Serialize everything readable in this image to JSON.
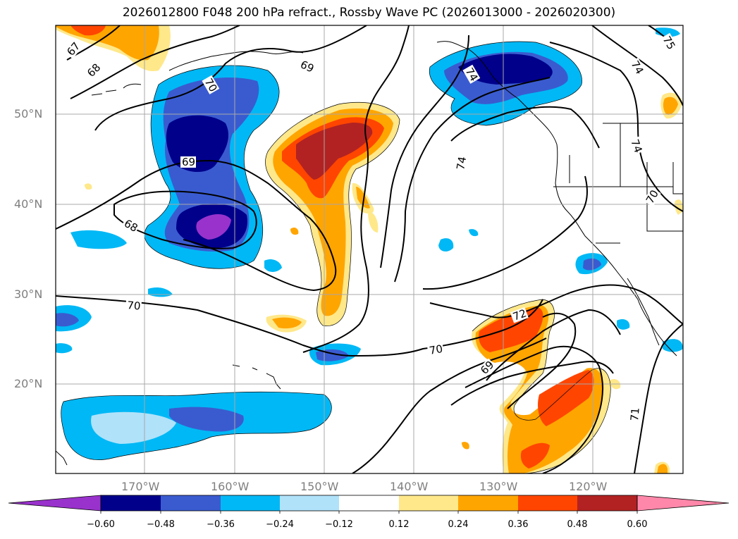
{
  "title": "2026012800 F048 200 hPa refract., Rossby Wave PC (2026013000 - 2026020300)",
  "lat_labels": [
    "50°N",
    "40°N",
    "30°N",
    "20°N"
  ],
  "lon_labels": [
    "170°W",
    "160°W",
    "150°W",
    "140°W",
    "130°W",
    "120°W"
  ],
  "contour_labels": [
    "67",
    "68",
    "70",
    "69",
    "69",
    "68",
    "70",
    "74",
    "74",
    "74",
    "70",
    "72",
    "70",
    "69",
    "71",
    "74",
    "75"
  ],
  "colorbar": {
    "ticks": [
      "−0.60",
      "−0.48",
      "−0.36",
      "−0.24",
      "−0.12",
      "0.12",
      "0.24",
      "0.36",
      "0.48",
      "0.60"
    ],
    "colors": [
      "#9932cc",
      "#00008b",
      "#3a5bd0",
      "#00b8f5",
      "#b0e2fa",
      "#ffffff",
      "#ffe88a",
      "#ffa500",
      "#ff4500",
      "#b22222",
      "#ff88aa"
    ]
  }
}
